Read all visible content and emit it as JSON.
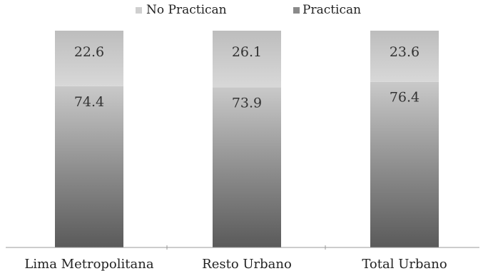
{
  "chart_data": {
    "type": "bar",
    "stacked": true,
    "categories": [
      "Lima Metropolitana",
      "Resto Urbano",
      "Total Urbano"
    ],
    "series": [
      {
        "name": "Practican",
        "values": [
          74.4,
          73.9,
          76.4
        ],
        "color": "#6f6f6f"
      },
      {
        "name": "No Practican",
        "values": [
          22.6,
          26.1,
          23.6
        ],
        "color": "#cccccc"
      }
    ],
    "data_labels": {
      "Practican": [
        "74.4",
        "73.9",
        "76.4"
      ],
      "No Practican": [
        "22.6",
        "26.1",
        "23.6"
      ]
    },
    "legend": {
      "position": "top",
      "entries": [
        "No Practican",
        "Practican"
      ]
    },
    "ylim": [
      0,
      100
    ],
    "grid": false
  }
}
